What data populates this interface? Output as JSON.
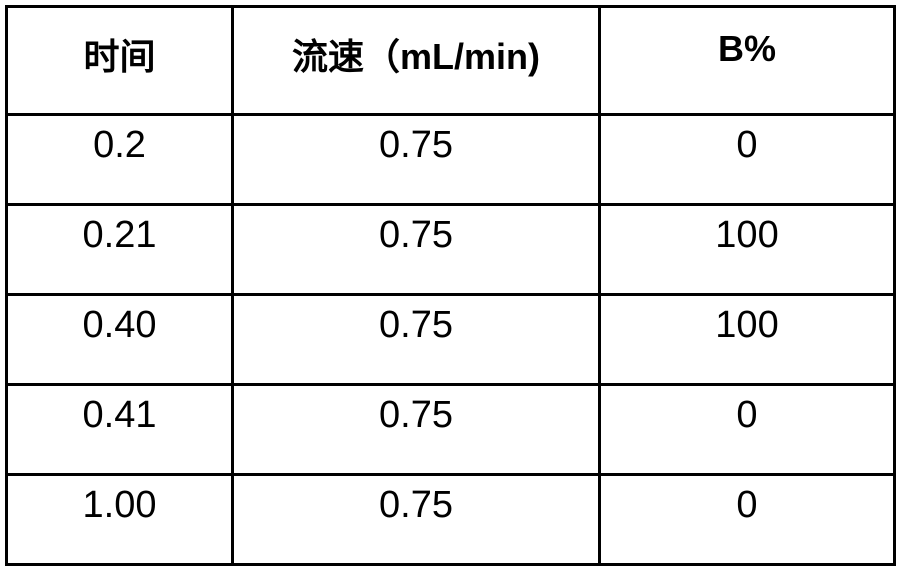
{
  "table": {
    "headers": [
      "时间",
      "流速（mL/min)",
      "B%"
    ],
    "rows": [
      [
        "0.2",
        "0.75",
        "0"
      ],
      [
        "0.21",
        "0.75",
        "100"
      ],
      [
        "0.40",
        "0.75",
        "100"
      ],
      [
        "0.41",
        "0.75",
        "0"
      ],
      [
        "1.00",
        "0.75",
        "0"
      ]
    ]
  }
}
